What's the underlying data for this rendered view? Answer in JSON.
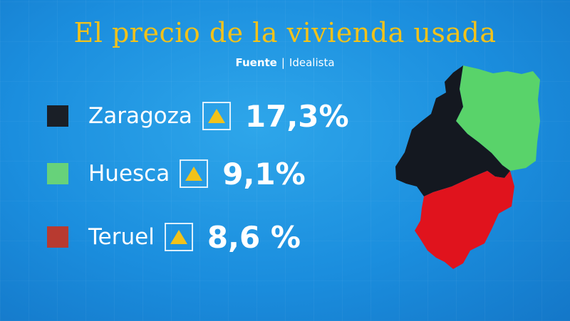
{
  "title": "El precio de la vivienda usada",
  "source": {
    "label": "Fuente",
    "separator": "|",
    "name": "Idealista"
  },
  "provinces": [
    {
      "name": "Zaragoza",
      "value": "17,3%",
      "color": "#1a1f27",
      "trend": "up-triangle-icon"
    },
    {
      "name": "Huesca",
      "value": "9,1%",
      "color": "#67d27a",
      "trend": "up-triangle-icon"
    },
    {
      "name": "Teruel",
      "value": "8,6 %",
      "color": "#b83a30",
      "trend": "up-triangle-icon"
    }
  ],
  "map": {
    "regions": [
      {
        "name": "Huesca",
        "color": "#59d36a"
      },
      {
        "name": "Zaragoza",
        "color": "#141820"
      },
      {
        "name": "Teruel",
        "color": "#e0131d"
      }
    ]
  }
}
